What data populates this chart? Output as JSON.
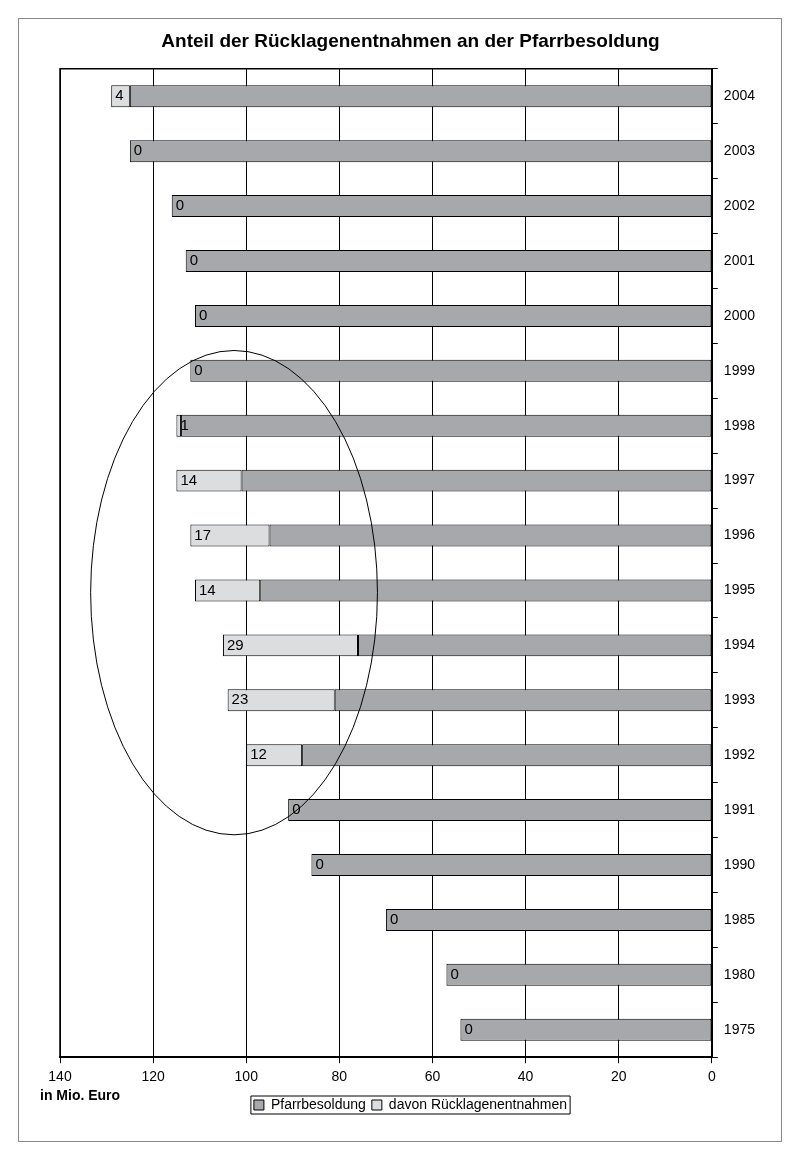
{
  "chart_data": {
    "type": "bar",
    "title": "Anteil der Rücklagenentnahmen an der Pfarrbesoldung",
    "xlabel": "in Mio. Euro",
    "orientation": "horizontal",
    "categories": [
      "2004",
      "2003",
      "2002",
      "2001",
      "2000",
      "1999",
      "1998",
      "1997",
      "1996",
      "1995",
      "1994",
      "1993",
      "1992",
      "1991",
      "1990",
      "1985",
      "1980",
      "1975"
    ],
    "stacked": true,
    "series": [
      {
        "name": "Pfarrbesoldung",
        "color": "#a7a8ab",
        "values": [
          125,
          125,
          116,
          113,
          111,
          112,
          114,
          101,
          95,
          97,
          76,
          81,
          88,
          91,
          86,
          70,
          57,
          54
        ]
      },
      {
        "name": "davon Rücklagenentnahmen",
        "color": "#dcdddf",
        "values": [
          4,
          0,
          0,
          0,
          0,
          0,
          1,
          14,
          17,
          14,
          29,
          23,
          12,
          0,
          0,
          0,
          0,
          0
        ],
        "value_labels": [
          "4",
          "0",
          "0",
          "0",
          "0",
          "0",
          "1",
          "14",
          "17",
          "14",
          "29",
          "23",
          "12",
          "0",
          "0",
          "0",
          "0",
          "0"
        ]
      }
    ],
    "xlim": [
      140,
      0
    ],
    "xticks": [
      0,
      20,
      40,
      60,
      80,
      100,
      120,
      140
    ],
    "grid": "x",
    "legend": "bottom"
  }
}
